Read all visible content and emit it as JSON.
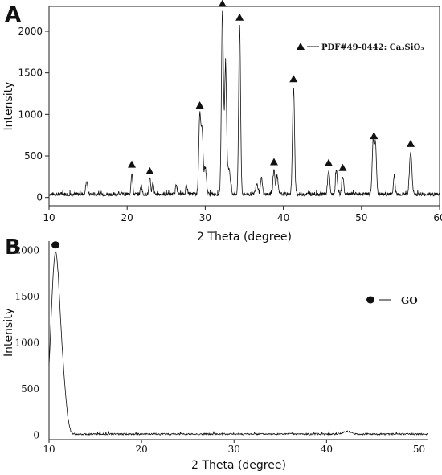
{
  "chart_data": [
    {
      "panel": "A",
      "type": "line",
      "xlabel": "2 Theta (degree)",
      "ylabel": "Intensity",
      "xlim": [
        10,
        60
      ],
      "ylim": [
        -100,
        2300
      ],
      "xticks": [
        10,
        20,
        30,
        40,
        50,
        60
      ],
      "yticks": [
        0,
        500,
        1000,
        1500,
        2000
      ],
      "legend": {
        "label": "PDF#49-0442: Ca₃SiO₅",
        "marker": "triangle",
        "placement": "top-right"
      },
      "baseline": 40,
      "peaks": [
        {
          "x": 14.8,
          "y": 200,
          "w": 0.12
        },
        {
          "x": 20.6,
          "y": 300,
          "w": 0.1
        },
        {
          "x": 21.8,
          "y": 150,
          "w": 0.1
        },
        {
          "x": 22.9,
          "y": 220,
          "w": 0.1
        },
        {
          "x": 23.3,
          "y": 170,
          "w": 0.1
        },
        {
          "x": 26.3,
          "y": 160,
          "w": 0.1
        },
        {
          "x": 27.6,
          "y": 150,
          "w": 0.1
        },
        {
          "x": 29.3,
          "y": 980,
          "w": 0.13
        },
        {
          "x": 29.6,
          "y": 780,
          "w": 0.12
        },
        {
          "x": 30.0,
          "y": 360,
          "w": 0.15
        },
        {
          "x": 32.2,
          "y": 2230,
          "w": 0.13
        },
        {
          "x": 32.6,
          "y": 1560,
          "w": 0.12
        },
        {
          "x": 33.0,
          "y": 350,
          "w": 0.2
        },
        {
          "x": 34.4,
          "y": 2070,
          "w": 0.12
        },
        {
          "x": 36.6,
          "y": 170,
          "w": 0.15
        },
        {
          "x": 37.2,
          "y": 230,
          "w": 0.12
        },
        {
          "x": 38.8,
          "y": 330,
          "w": 0.12
        },
        {
          "x": 39.2,
          "y": 250,
          "w": 0.12
        },
        {
          "x": 41.3,
          "y": 1330,
          "w": 0.13
        },
        {
          "x": 45.8,
          "y": 320,
          "w": 0.13
        },
        {
          "x": 46.8,
          "y": 330,
          "w": 0.12
        },
        {
          "x": 47.6,
          "y": 260,
          "w": 0.12
        },
        {
          "x": 51.5,
          "y": 650,
          "w": 0.13
        },
        {
          "x": 51.8,
          "y": 640,
          "w": 0.12
        },
        {
          "x": 54.2,
          "y": 280,
          "w": 0.1
        },
        {
          "x": 56.3,
          "y": 550,
          "w": 0.15
        }
      ],
      "markers_x": [
        20.6,
        22.9,
        29.3,
        32.2,
        34.4,
        38.8,
        41.3,
        45.8,
        47.6,
        51.6,
        56.3
      ]
    },
    {
      "panel": "B",
      "type": "line",
      "xlabel": "2 Theta (degree)",
      "ylabel": "Intensity",
      "xlim": [
        10,
        51
      ],
      "ylim": [
        -50,
        2100
      ],
      "xticks": [
        10,
        20,
        30,
        40,
        50
      ],
      "yticks": [
        0,
        500,
        1000,
        1500,
        2000
      ],
      "legend": {
        "label": "GO",
        "marker": "circle",
        "placement": "right"
      },
      "baseline": 10,
      "peaks": [
        {
          "x": 10.7,
          "y": 1970,
          "w": 0.5
        },
        {
          "x": 11.6,
          "y": 300,
          "w": 0.35
        },
        {
          "x": 42.2,
          "y": 40,
          "w": 0.4
        }
      ],
      "markers_x": [
        10.7
      ]
    }
  ]
}
